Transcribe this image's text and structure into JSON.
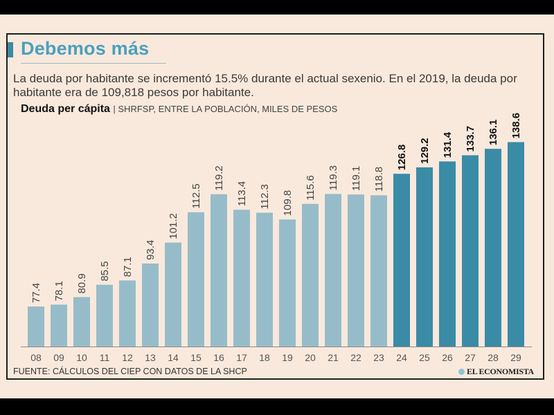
{
  "header": {
    "title": "Debemos más",
    "description": "La deuda por habitante se incrementó 15.5% durante el actual sexenio. En el 2019, la deuda por habitante era de 109,818 pesos por habitante.",
    "subtitle_bold": "Deuda per cápita",
    "subtitle_source": "| SHRFSP, ENTRE LA POBLACIÓN, MILES DE PESOS"
  },
  "footer": {
    "source": "FUENTE: CÁLCULOS DEL CIEP CON DATOS DE LA SHCP",
    "brand": "EL ECONOMISTA"
  },
  "colors": {
    "background": "#f9e9dc",
    "historical_bar": "#97bcc9",
    "projected_bar": "#3a8ba6",
    "title": "#4aa0bf"
  },
  "chart_data": {
    "type": "bar",
    "title": "Deuda per cápita",
    "subtitle": "SHRFSP, entre la población, miles de pesos",
    "xlabel": "",
    "ylabel": "",
    "ylim": [
      62.5,
      140
    ],
    "grid": false,
    "legend": "none",
    "categories": [
      "08",
      "09",
      "10",
      "11",
      "12",
      "13",
      "14",
      "15",
      "16",
      "17",
      "18",
      "19",
      "20",
      "21",
      "22",
      "23",
      "24",
      "25",
      "26",
      "27",
      "28",
      "29"
    ],
    "values": [
      77.4,
      78.1,
      80.9,
      85.5,
      87.1,
      93.4,
      101.2,
      112.5,
      119.2,
      113.4,
      112.3,
      109.8,
      115.6,
      119.3,
      119.1,
      118.8,
      126.8,
      129.2,
      131.4,
      133.7,
      136.1,
      138.6
    ],
    "labels": [
      "77.4",
      "78.1",
      "80.9",
      "85.5",
      "87.1",
      "93.4",
      "101.2",
      "112.5",
      "119.2",
      "113.4",
      "112.3",
      "109.8",
      "115.6",
      "119.3",
      "119.1",
      "118.8",
      "126.8",
      "129.2",
      "131.4",
      "133.7",
      "136.1",
      "138.6"
    ],
    "series_split": {
      "historical_until": "23",
      "projected_from": "24"
    }
  }
}
